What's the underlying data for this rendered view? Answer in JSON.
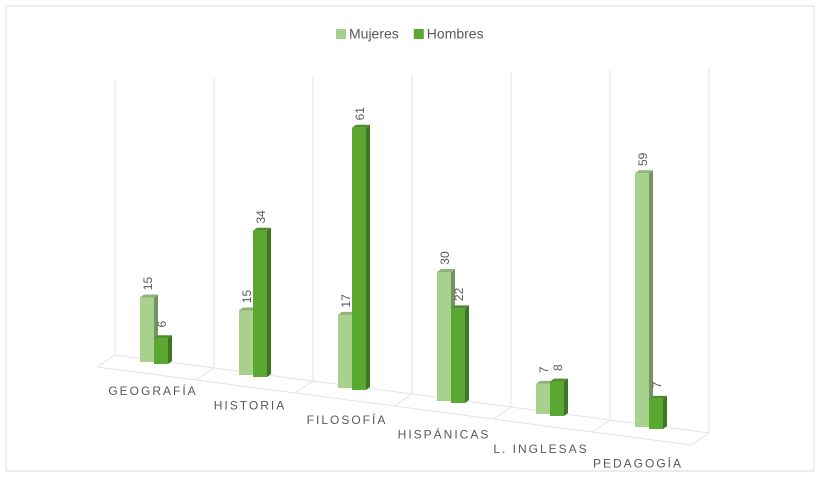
{
  "chart_data": {
    "type": "bar3d",
    "categories": [
      "GEOGRAFÍA",
      "HISTORIA",
      "FILOSOFÍA",
      "HISPÁNICAS",
      "L. INGLESAS",
      "PEDAGOGÍA"
    ],
    "series": [
      {
        "name": "Mujeres",
        "color": "#a9d18e",
        "values": [
          15,
          15,
          17,
          30,
          7,
          59
        ]
      },
      {
        "name": "Hombres",
        "color": "#5aa832",
        "values": [
          6,
          34,
          61,
          22,
          8,
          7
        ]
      }
    ],
    "legend": "top"
  }
}
